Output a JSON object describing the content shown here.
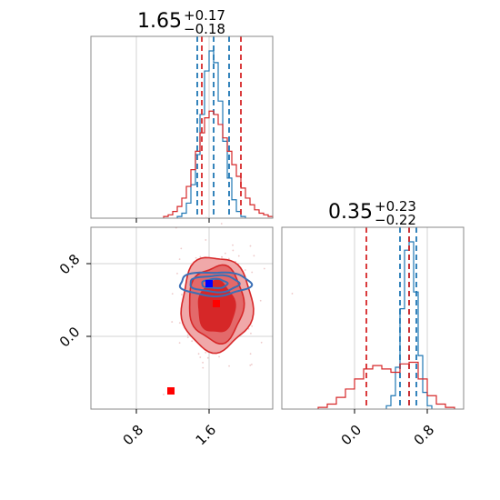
{
  "colors": {
    "red": "#d62728",
    "red_mid": "#e3696a",
    "red_light": "#f0a8a9",
    "blue": "#1f77b4",
    "blue_contour": "#3a6fb5",
    "marker_red": "#ff0000",
    "marker_blue": "#0000ff",
    "grid": "#d3d3d3",
    "frame": "#888888"
  },
  "chart_data": [
    {
      "type": "histogram",
      "panel": "param-1-marginal",
      "title": {
        "value": "1.65",
        "plus": "+0.17",
        "minus": "−0.18"
      },
      "xlim": [
        0.3,
        2.3
      ],
      "x_major_ticks": [
        0.8,
        1.6
      ],
      "series": [
        {
          "color": "blue",
          "edges": [
            1.25,
            1.3,
            1.35,
            1.4,
            1.45,
            1.5,
            1.55,
            1.6,
            1.65,
            1.7,
            1.75,
            1.8,
            1.85,
            1.9,
            1.95,
            2.0
          ],
          "counts": [
            0.01,
            0.03,
            0.09,
            0.2,
            0.38,
            0.62,
            0.88,
            1.0,
            0.93,
            0.7,
            0.46,
            0.24,
            0.11,
            0.04,
            0.01
          ],
          "quantile_lines": [
            1.47,
            1.65,
            1.82
          ]
        },
        {
          "color": "red",
          "edges": [
            1.1,
            1.15,
            1.2,
            1.25,
            1.3,
            1.35,
            1.4,
            1.45,
            1.5,
            1.55,
            1.6,
            1.65,
            1.7,
            1.75,
            1.8,
            1.85,
            1.9,
            1.95,
            2.0,
            2.05,
            2.1,
            2.15,
            2.2,
            2.25,
            2.3
          ],
          "counts": [
            0.01,
            0.02,
            0.04,
            0.07,
            0.12,
            0.19,
            0.29,
            0.4,
            0.51,
            0.6,
            0.64,
            0.62,
            0.56,
            0.48,
            0.4,
            0.32,
            0.25,
            0.18,
            0.12,
            0.08,
            0.05,
            0.03,
            0.02,
            0.01
          ],
          "quantile_lines": [
            1.52,
            1.95
          ]
        }
      ]
    },
    {
      "type": "histogram",
      "panel": "param-2-marginal",
      "title": {
        "value": "0.35",
        "plus": "+0.23",
        "minus": "−0.22"
      },
      "xlim": [
        -0.8,
        1.2
      ],
      "x_major_ticks": [
        0.0,
        0.8
      ],
      "series": [
        {
          "color": "blue",
          "edges": [
            0.35,
            0.4,
            0.45,
            0.5,
            0.55,
            0.6,
            0.65,
            0.7,
            0.75,
            0.8,
            0.85
          ],
          "counts": [
            0.02,
            0.08,
            0.25,
            0.6,
            0.95,
            1.0,
            0.7,
            0.32,
            0.1,
            0.02
          ],
          "quantile_lines": [
            0.5,
            0.6,
            0.68
          ]
        },
        {
          "color": "red",
          "edges": [
            -0.4,
            -0.3,
            -0.2,
            -0.1,
            0.0,
            0.1,
            0.2,
            0.3,
            0.4,
            0.5,
            0.6,
            0.7,
            0.8,
            0.9,
            1.0,
            1.1
          ],
          "counts": [
            0.01,
            0.03,
            0.07,
            0.12,
            0.18,
            0.24,
            0.26,
            0.24,
            0.22,
            0.27,
            0.28,
            0.18,
            0.08,
            0.03,
            0.01
          ],
          "quantile_lines": [
            0.13,
            0.6
          ]
        }
      ]
    },
    {
      "type": "contour",
      "panel": "joint-2d",
      "xlim": [
        0.3,
        2.3
      ],
      "ylim": [
        -0.8,
        1.2
      ],
      "x_major_ticks": [
        0.8,
        1.6
      ],
      "y_major_ticks": [
        0.0,
        0.8
      ],
      "red_levels": [
        {
          "cx": 1.68,
          "cy": 0.36,
          "rx": 0.39,
          "ry": 0.52,
          "fill": "red_light"
        },
        {
          "cx": 1.68,
          "cy": 0.36,
          "rx": 0.3,
          "ry": 0.42,
          "fill": "red_mid"
        },
        {
          "cx": 1.68,
          "cy": 0.32,
          "rx": 0.2,
          "ry": 0.28,
          "fill": "red"
        }
      ],
      "blue_levels": [
        {
          "cx": 1.66,
          "cy": 0.58,
          "rx": 0.39,
          "ry": 0.13
        },
        {
          "cx": 1.66,
          "cy": 0.58,
          "rx": 0.27,
          "ry": 0.09
        },
        {
          "cx": 1.66,
          "cy": 0.58,
          "rx": 0.14,
          "ry": 0.05
        }
      ],
      "markers": [
        {
          "x": 1.6,
          "y": 0.58,
          "color": "marker_blue"
        },
        {
          "x": 1.68,
          "y": 0.36,
          "color": "marker_red"
        },
        {
          "x": 1.18,
          "y": -0.6,
          "color": "marker_red"
        }
      ]
    }
  ]
}
